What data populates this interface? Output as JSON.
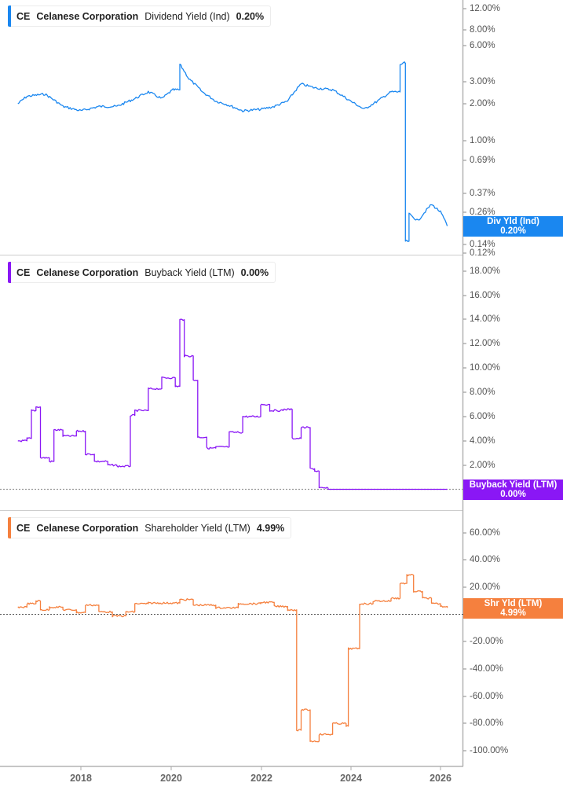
{
  "panels": [
    {
      "id": "dividend",
      "legend": {
        "ticker": "CE",
        "company": "Celanese Corporation",
        "metric": "Dividend Yield (Ind)",
        "value": "0.20%"
      },
      "color": "#1a87f0",
      "badge": {
        "line1": "Div Yld (Ind)",
        "line2": "0.20%"
      },
      "ticks": [
        "12.00%",
        "8.00%",
        "6.00%",
        "3.00%",
        "2.00%",
        "1.00%",
        "0.69%",
        "0.37%",
        "0.26%",
        "0.14%",
        "0.12%"
      ]
    },
    {
      "id": "buyback",
      "legend": {
        "ticker": "CE",
        "company": "Celanese Corporation",
        "metric": "Buyback Yield (LTM)",
        "value": "0.00%"
      },
      "color": "#8a17f5",
      "badge": {
        "line1": "Buyback Yield (LTM)",
        "line2": "0.00%"
      },
      "ticks": [
        "18.00%",
        "16.00%",
        "14.00%",
        "12.00%",
        "10.00%",
        "8.00%",
        "6.00%",
        "4.00%",
        "2.00%",
        "0.00%"
      ]
    },
    {
      "id": "shareholder",
      "legend": {
        "ticker": "CE",
        "company": "Celanese Corporation",
        "metric": "Shareholder Yield (LTM)",
        "value": "4.99%"
      },
      "color": "#f5803e",
      "badge": {
        "line1": "Shr Yld (LTM)",
        "line2": "4.99%"
      },
      "ticks": [
        "60.00%",
        "40.00%",
        "20.00%",
        "0.00%",
        "-20.00%",
        "-40.00%",
        "-60.00%",
        "-80.00%",
        "-100.00%"
      ]
    }
  ],
  "x_axis": {
    "ticks": [
      "2018",
      "2020",
      "2022",
      "2024",
      "2026"
    ]
  },
  "chart_data": [
    {
      "type": "line",
      "title": "CE Celanese Corporation Dividend Yield (Ind)",
      "yscale": "log",
      "xlabel": "",
      "ylabel": "Dividend Yield (Ind) %",
      "ylim": [
        0.12,
        12.0
      ],
      "y_ticks": [
        12.0,
        8.0,
        6.0,
        3.0,
        2.0,
        1.0,
        0.69,
        0.37,
        0.26,
        0.14,
        0.12
      ],
      "x_ticks": [
        "2018",
        "2020",
        "2022",
        "2024",
        "2026"
      ],
      "last_value": 0.2,
      "series": [
        {
          "name": "Dividend Yield (Ind)",
          "color": "#1a87f0",
          "x": [
            2016.6,
            2016.8,
            2017.2,
            2017.6,
            2018.0,
            2018.4,
            2018.8,
            2019.0,
            2019.2,
            2019.5,
            2019.8,
            2020.05,
            2020.2,
            2020.4,
            2020.7,
            2021.0,
            2021.2,
            2021.6,
            2022.0,
            2022.3,
            2022.6,
            2022.9,
            2023.2,
            2023.6,
            2024.0,
            2024.3,
            2024.6,
            2024.9,
            2025.1,
            2025.2,
            2025.22,
            2025.3,
            2025.5,
            2025.8,
            2026.0,
            2026.15
          ],
          "values": [
            2.0,
            2.3,
            2.4,
            1.9,
            1.75,
            1.9,
            1.9,
            2.05,
            2.2,
            2.5,
            2.2,
            2.6,
            4.2,
            3.2,
            2.5,
            2.1,
            2.0,
            1.75,
            1.8,
            1.9,
            2.1,
            2.9,
            2.7,
            2.6,
            2.1,
            1.8,
            2.1,
            2.5,
            4.2,
            4.3,
            0.15,
            0.25,
            0.22,
            0.3,
            0.26,
            0.2
          ]
        }
      ]
    },
    {
      "type": "line",
      "title": "CE Celanese Corporation Buyback Yield (LTM)",
      "xlabel": "",
      "ylabel": "Buyback Yield (LTM) %",
      "ylim": [
        0,
        19
      ],
      "y_ticks": [
        18,
        16,
        14,
        12,
        10,
        8,
        6,
        4,
        2,
        0
      ],
      "x_ticks": [
        "2018",
        "2020",
        "2022",
        "2024",
        "2026"
      ],
      "last_value": 0.0,
      "series": [
        {
          "name": "Buyback Yield (LTM)",
          "color": "#8a17f5",
          "x": [
            2016.6,
            2016.8,
            2016.9,
            2017.0,
            2017.1,
            2017.3,
            2017.4,
            2017.6,
            2017.9,
            2018.1,
            2018.3,
            2018.6,
            2018.8,
            2019.1,
            2019.2,
            2019.5,
            2019.8,
            2020.1,
            2020.2,
            2020.3,
            2020.5,
            2020.6,
            2020.8,
            2021.0,
            2021.3,
            2021.6,
            2022.0,
            2022.2,
            2022.5,
            2022.7,
            2022.9,
            2023.1,
            2023.2,
            2023.3,
            2023.5,
            2024.0,
            2025.0,
            2026.15
          ],
          "values": [
            4.0,
            4.2,
            6.5,
            6.8,
            2.6,
            2.3,
            4.9,
            4.4,
            4.8,
            2.9,
            2.3,
            2.0,
            1.9,
            6.1,
            6.5,
            8.3,
            9.2,
            8.5,
            14.0,
            11.0,
            9.0,
            4.3,
            3.4,
            3.5,
            4.7,
            6.0,
            7.0,
            6.5,
            6.6,
            4.2,
            5.1,
            1.7,
            1.5,
            0.1,
            0.0,
            0.0,
            0.0,
            0.0
          ]
        }
      ]
    },
    {
      "type": "line",
      "title": "CE Celanese Corporation Shareholder Yield (LTM)",
      "xlabel": "",
      "ylabel": "Shareholder Yield (LTM) %",
      "ylim": [
        -105,
        75
      ],
      "y_ticks": [
        60,
        40,
        20,
        0,
        -20,
        -40,
        -60,
        -80,
        -100
      ],
      "x_ticks": [
        "2018",
        "2020",
        "2022",
        "2024",
        "2026"
      ],
      "last_value": 4.99,
      "series": [
        {
          "name": "Shareholder Yield (LTM)",
          "color": "#f5803e",
          "x": [
            2016.6,
            2016.8,
            2017.0,
            2017.1,
            2017.3,
            2017.6,
            2017.9,
            2018.1,
            2018.4,
            2018.7,
            2019.0,
            2019.2,
            2019.5,
            2020.0,
            2020.2,
            2020.5,
            2021.0,
            2021.5,
            2022.0,
            2022.3,
            2022.6,
            2022.75,
            2022.8,
            2022.9,
            2023.1,
            2023.3,
            2023.6,
            2023.9,
            2023.95,
            2024.2,
            2024.5,
            2024.9,
            2025.1,
            2025.25,
            2025.4,
            2025.6,
            2025.8,
            2026.0,
            2026.15
          ],
          "values": [
            5.5,
            8.0,
            10.0,
            3.5,
            5.5,
            3.5,
            1.5,
            7.0,
            2.0,
            -1.0,
            2.0,
            8.0,
            8.5,
            8.5,
            11.0,
            7.0,
            5.0,
            8.0,
            9.0,
            6.0,
            3.5,
            3.5,
            -85.0,
            -70.0,
            -93.0,
            -88.0,
            -80.0,
            -82.0,
            -25.0,
            8.0,
            10.0,
            12.0,
            23.0,
            29.0,
            17.0,
            12.0,
            8.0,
            6.0,
            4.99
          ]
        }
      ]
    }
  ]
}
